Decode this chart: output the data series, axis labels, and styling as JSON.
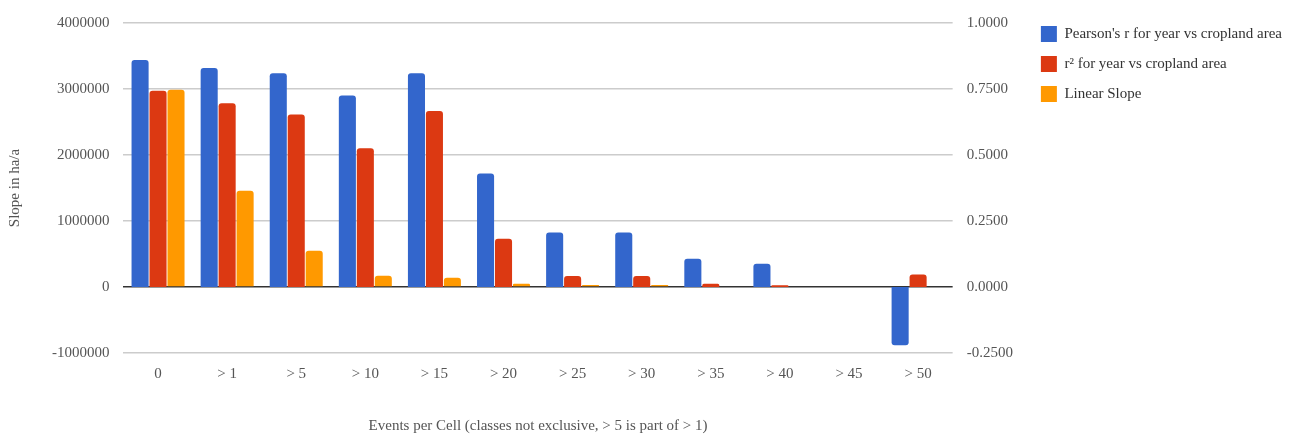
{
  "chart_data": {
    "type": "bar",
    "xlabel": "Events per Cell (classes not exclusive, > 5 is part of > 1)",
    "ylabel": "Slope in ha/a",
    "categories": [
      "0",
      "> 1",
      "> 5",
      "> 10",
      "> 15",
      "> 20",
      "> 25",
      "> 30",
      "> 35",
      "> 40",
      "> 45",
      "> 50"
    ],
    "series": [
      {
        "name": "Pearson's r for year vs cropland area",
        "color": "#3366cc",
        "axis": "y2",
        "values": [
          0.86,
          0.83,
          0.81,
          0.725,
          0.81,
          0.43,
          0.206,
          0.206,
          0.107,
          0.088,
          null,
          -0.221
        ]
      },
      {
        "name": "r² for year vs cropland area",
        "color": "#dc3912",
        "axis": "y2",
        "values": [
          0.743,
          0.696,
          0.653,
          0.526,
          0.667,
          0.183,
          0.042,
          0.042,
          0.012,
          0.007,
          null,
          0.047
        ]
      },
      {
        "name": "Linear Slope",
        "color": "#ff9900",
        "values": [
          2990000,
          1460000,
          550000,
          170000,
          140000,
          50000,
          30000,
          30000,
          null,
          null,
          null,
          null
        ]
      }
    ],
    "ylim": [
      -1000000,
      4000000
    ],
    "yticks": [
      -1000000,
      0,
      1000000,
      2000000,
      3000000,
      4000000
    ],
    "y2lim": [
      -0.25,
      1
    ],
    "y2ticks": [
      {
        "value": -0.25,
        "label": "-0.2500"
      },
      {
        "value": 0,
        "label": "0.0000"
      },
      {
        "value": 0.25,
        "label": "0.2500"
      },
      {
        "value": 0.5,
        "label": "0.5000"
      },
      {
        "value": 0.75,
        "label": "0.7500"
      },
      {
        "value": 1,
        "label": "1.0000"
      }
    ],
    "grid": "y",
    "legend": "right"
  }
}
